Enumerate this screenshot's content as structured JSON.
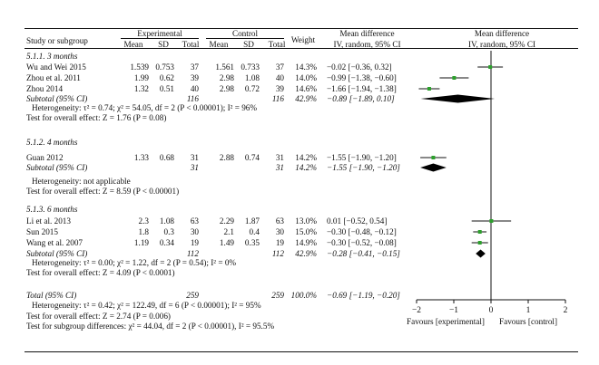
{
  "colors": {
    "point": "#2ca02c",
    "line": "#111111",
    "diamond": "#000000"
  },
  "header": {
    "study_or_subgroup": "Study or subgroup",
    "experimental": "Experimental",
    "control": "Control",
    "mean": "Mean",
    "sd": "SD",
    "total": "Total",
    "weight": "Weight",
    "mean_difference": "Mean difference",
    "method": "IV, random, 95% CI"
  },
  "groups": [
    {
      "title": "5.1.1. 3 months",
      "studies": [
        {
          "name": "Wu and Wei 2015",
          "e_mean": "1.539",
          "e_sd": "0.753",
          "e_total": "37",
          "c_mean": "1.561",
          "c_sd": "0.733",
          "c_total": "37",
          "weight": "14.3%",
          "ci": "−0.02 [−0.36, 0.32]"
        },
        {
          "name": "Zhou et al. 2011",
          "e_mean": "1.99",
          "e_sd": "0.62",
          "e_total": "39",
          "c_mean": "2.98",
          "c_sd": "1.08",
          "c_total": "40",
          "weight": "14.0%",
          "ci": "−0.99 [−1.38, −0.60]"
        },
        {
          "name": "Zhou 2014",
          "e_mean": "1.32",
          "e_sd": "0.51",
          "e_total": "40",
          "c_mean": "2.98",
          "c_sd": "0.72",
          "c_total": "39",
          "weight": "14.6%",
          "ci": "−1.66 [−1.94, −1.38]"
        }
      ],
      "subtotal": {
        "label": "Subtotal (95% CI)",
        "e_total": "116",
        "c_total": "116",
        "weight": "42.9%",
        "ci": "−0.89 [−1.89, 0.10]"
      },
      "heterogeneity": "Heterogeneity: τ² = 0.74; χ² = 54.05, df = 2 (P < 0.00001); I² = 96%",
      "overall": "Test for overall effect: Z = 1.76 (P = 0.08)"
    },
    {
      "title": "5.1.2. 4 months",
      "studies": [
        {
          "name": "Guan 2012",
          "e_mean": "1.33",
          "e_sd": "0.68",
          "e_total": "31",
          "c_mean": "2.88",
          "c_sd": "0.74",
          "c_total": "31",
          "weight": "14.2%",
          "ci": "−1.55 [−1.90, −1.20]"
        }
      ],
      "subtotal": {
        "label": "Subtotal (95% CI)",
        "e_total": "31",
        "c_total": "31",
        "weight": "14.2%",
        "ci": "−1.55 [−1.90, −1.20]"
      },
      "heterogeneity": "Heterogeneity: not applicable",
      "overall": "Test for overall effect: Z = 8.59 (P < 0.00001)"
    },
    {
      "title": "5.1.3. 6 months",
      "studies": [
        {
          "name": "Li et al. 2013",
          "e_mean": "2.3",
          "e_sd": "1.08",
          "e_total": "63",
          "c_mean": "2.29",
          "c_sd": "1.87",
          "c_total": "63",
          "weight": "13.0%",
          "ci": "0.01 [−0.52, 0.54]"
        },
        {
          "name": "Sun 2015",
          "e_mean": "1.8",
          "e_sd": "0.3",
          "e_total": "30",
          "c_mean": "2.1",
          "c_sd": "0.4",
          "c_total": "30",
          "weight": "15.0%",
          "ci": "−0.30 [−0.48, −0.12]"
        },
        {
          "name": "Wang et al. 2007",
          "e_mean": "1.19",
          "e_sd": "0.34",
          "e_total": "19",
          "c_mean": "1.49",
          "c_sd": "0.35",
          "c_total": "19",
          "weight": "14.9%",
          "ci": "−0.30 [−0.52, −0.08]"
        }
      ],
      "subtotal": {
        "label": "Subtotal (95% CI)",
        "e_total": "112",
        "c_total": "112",
        "weight": "42.9%",
        "ci": "−0.28 [−0.41, −0.15]"
      },
      "heterogeneity": "Heterogeneity: τ² = 0.00; χ² = 1.22, df = 2 (P = 0.54); I² = 0%",
      "overall": "Test for overall effect: Z = 4.09 (P < 0.0001)"
    }
  ],
  "total": {
    "label": "Total (95% CI)",
    "e_total": "259",
    "c_total": "259",
    "weight": "100.0%",
    "ci": "−0.69 [−1.19, −0.20]",
    "heterogeneity": "Heterogeneity: τ² = 0.42; χ² = 122.49, df = 6 (P < 0.00001); I² = 95%",
    "overall": "Test for overall effect: Z = 2.74 (P = 0.006)",
    "subgroup": "Test for subgroup differences: χ² = 44.04, df = 2 (P < 0.00001), I² = 95.5%"
  },
  "footer": {
    "favours_left": "Favours [experimental]",
    "favours_right": "Favours [control]"
  },
  "chart_data": {
    "type": "forest",
    "title": "Mean difference",
    "subtitle": "IV, random, 95% CI",
    "xlim": [
      -2,
      2
    ],
    "ticks": [
      "−2",
      "−1",
      "0",
      "1",
      "2"
    ],
    "tick_values": [
      -2,
      -1,
      0,
      1,
      2
    ],
    "studies": [
      {
        "name": "Wu and Wei 2015",
        "md": -0.02,
        "lo": -0.36,
        "hi": 0.32
      },
      {
        "name": "Zhou et al. 2011",
        "md": -0.99,
        "lo": -1.38,
        "hi": -0.6
      },
      {
        "name": "Zhou 2014",
        "md": -1.66,
        "lo": -1.94,
        "hi": -1.38
      },
      {
        "name": "Guan 2012",
        "md": -1.55,
        "lo": -1.9,
        "hi": -1.2
      },
      {
        "name": "Li et al. 2013",
        "md": 0.01,
        "lo": -0.52,
        "hi": 0.54
      },
      {
        "name": "Sun 2015",
        "md": -0.3,
        "lo": -0.48,
        "hi": -0.12
      },
      {
        "name": "Wang et al. 2007",
        "md": -0.3,
        "lo": -0.52,
        "hi": -0.08
      }
    ],
    "diamonds": [
      {
        "name": "Subtotal 3 months",
        "md": -0.89,
        "lo": -1.89,
        "hi": 0.1
      },
      {
        "name": "Subtotal 4 months",
        "md": -1.55,
        "lo": -1.9,
        "hi": -1.2
      },
      {
        "name": "Subtotal 6 months",
        "md": -0.28,
        "lo": -0.41,
        "hi": -0.15
      }
    ]
  }
}
